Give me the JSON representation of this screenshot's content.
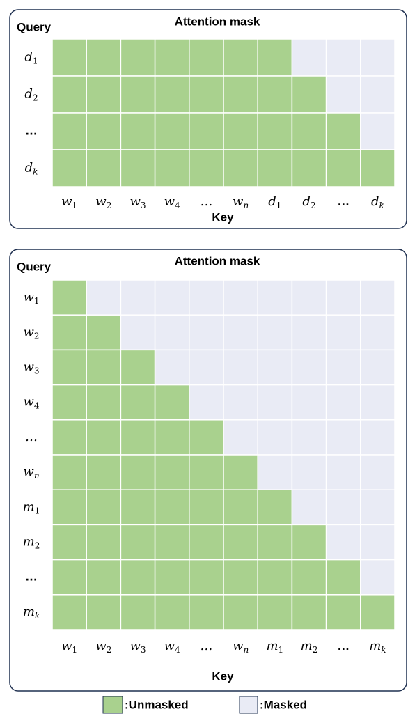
{
  "panels": [
    {
      "title": "Attention mask",
      "query_label": "Query",
      "key_label": "Key",
      "rows": [
        {
          "base": "d",
          "sub": "1"
        },
        {
          "base": "d",
          "sub": "2"
        },
        {
          "base": "…",
          "bold": true
        },
        {
          "base": "d",
          "sub": "k"
        }
      ],
      "columns": [
        {
          "base": "w",
          "sub": "1"
        },
        {
          "base": "w",
          "sub": "2"
        },
        {
          "base": "w",
          "sub": "3"
        },
        {
          "base": "w",
          "sub": "4"
        },
        {
          "base": "…"
        },
        {
          "base": "w",
          "sub": "n"
        },
        {
          "base": "d",
          "sub": "1"
        },
        {
          "base": "d",
          "sub": "2"
        },
        {
          "base": "…",
          "bold": true
        },
        {
          "base": "d",
          "sub": "k"
        }
      ],
      "mask": [
        [
          1,
          1,
          1,
          1,
          1,
          1,
          1,
          0,
          0,
          0
        ],
        [
          1,
          1,
          1,
          1,
          1,
          1,
          1,
          1,
          0,
          0
        ],
        [
          1,
          1,
          1,
          1,
          1,
          1,
          1,
          1,
          1,
          0
        ],
        [
          1,
          1,
          1,
          1,
          1,
          1,
          1,
          1,
          1,
          1
        ]
      ]
    },
    {
      "title": "Attention mask",
      "query_label": "Query",
      "key_label": "Key",
      "rows": [
        {
          "base": "w",
          "sub": "1"
        },
        {
          "base": "w",
          "sub": "2"
        },
        {
          "base": "w",
          "sub": "3"
        },
        {
          "base": "w",
          "sub": "4"
        },
        {
          "base": "…"
        },
        {
          "base": "w",
          "sub": "n"
        },
        {
          "base": "m",
          "sub": "1"
        },
        {
          "base": "m",
          "sub": "2"
        },
        {
          "base": "…",
          "bold": true
        },
        {
          "base": "m",
          "sub": "k"
        }
      ],
      "columns": [
        {
          "base": "w",
          "sub": "1"
        },
        {
          "base": "w",
          "sub": "2"
        },
        {
          "base": "w",
          "sub": "3"
        },
        {
          "base": "w",
          "sub": "4"
        },
        {
          "base": "…"
        },
        {
          "base": "w",
          "sub": "n"
        },
        {
          "base": "m",
          "sub": "1"
        },
        {
          "base": "m",
          "sub": "2"
        },
        {
          "base": "…",
          "bold": true
        },
        {
          "base": "m",
          "sub": "k"
        }
      ],
      "mask": [
        [
          1,
          0,
          0,
          0,
          0,
          0,
          0,
          0,
          0,
          0
        ],
        [
          1,
          1,
          0,
          0,
          0,
          0,
          0,
          0,
          0,
          0
        ],
        [
          1,
          1,
          1,
          0,
          0,
          0,
          0,
          0,
          0,
          0
        ],
        [
          1,
          1,
          1,
          1,
          0,
          0,
          0,
          0,
          0,
          0
        ],
        [
          1,
          1,
          1,
          1,
          1,
          0,
          0,
          0,
          0,
          0
        ],
        [
          1,
          1,
          1,
          1,
          1,
          1,
          0,
          0,
          0,
          0
        ],
        [
          1,
          1,
          1,
          1,
          1,
          1,
          1,
          0,
          0,
          0
        ],
        [
          1,
          1,
          1,
          1,
          1,
          1,
          1,
          1,
          0,
          0
        ],
        [
          1,
          1,
          1,
          1,
          1,
          1,
          1,
          1,
          1,
          0
        ],
        [
          1,
          1,
          1,
          1,
          1,
          1,
          1,
          1,
          1,
          1
        ]
      ]
    }
  ],
  "legend": {
    "unmasked": ":Unmasked",
    "masked": ":Masked",
    "unmasked_color": "#a9d18e",
    "masked_color": "#e9ebf5"
  }
}
